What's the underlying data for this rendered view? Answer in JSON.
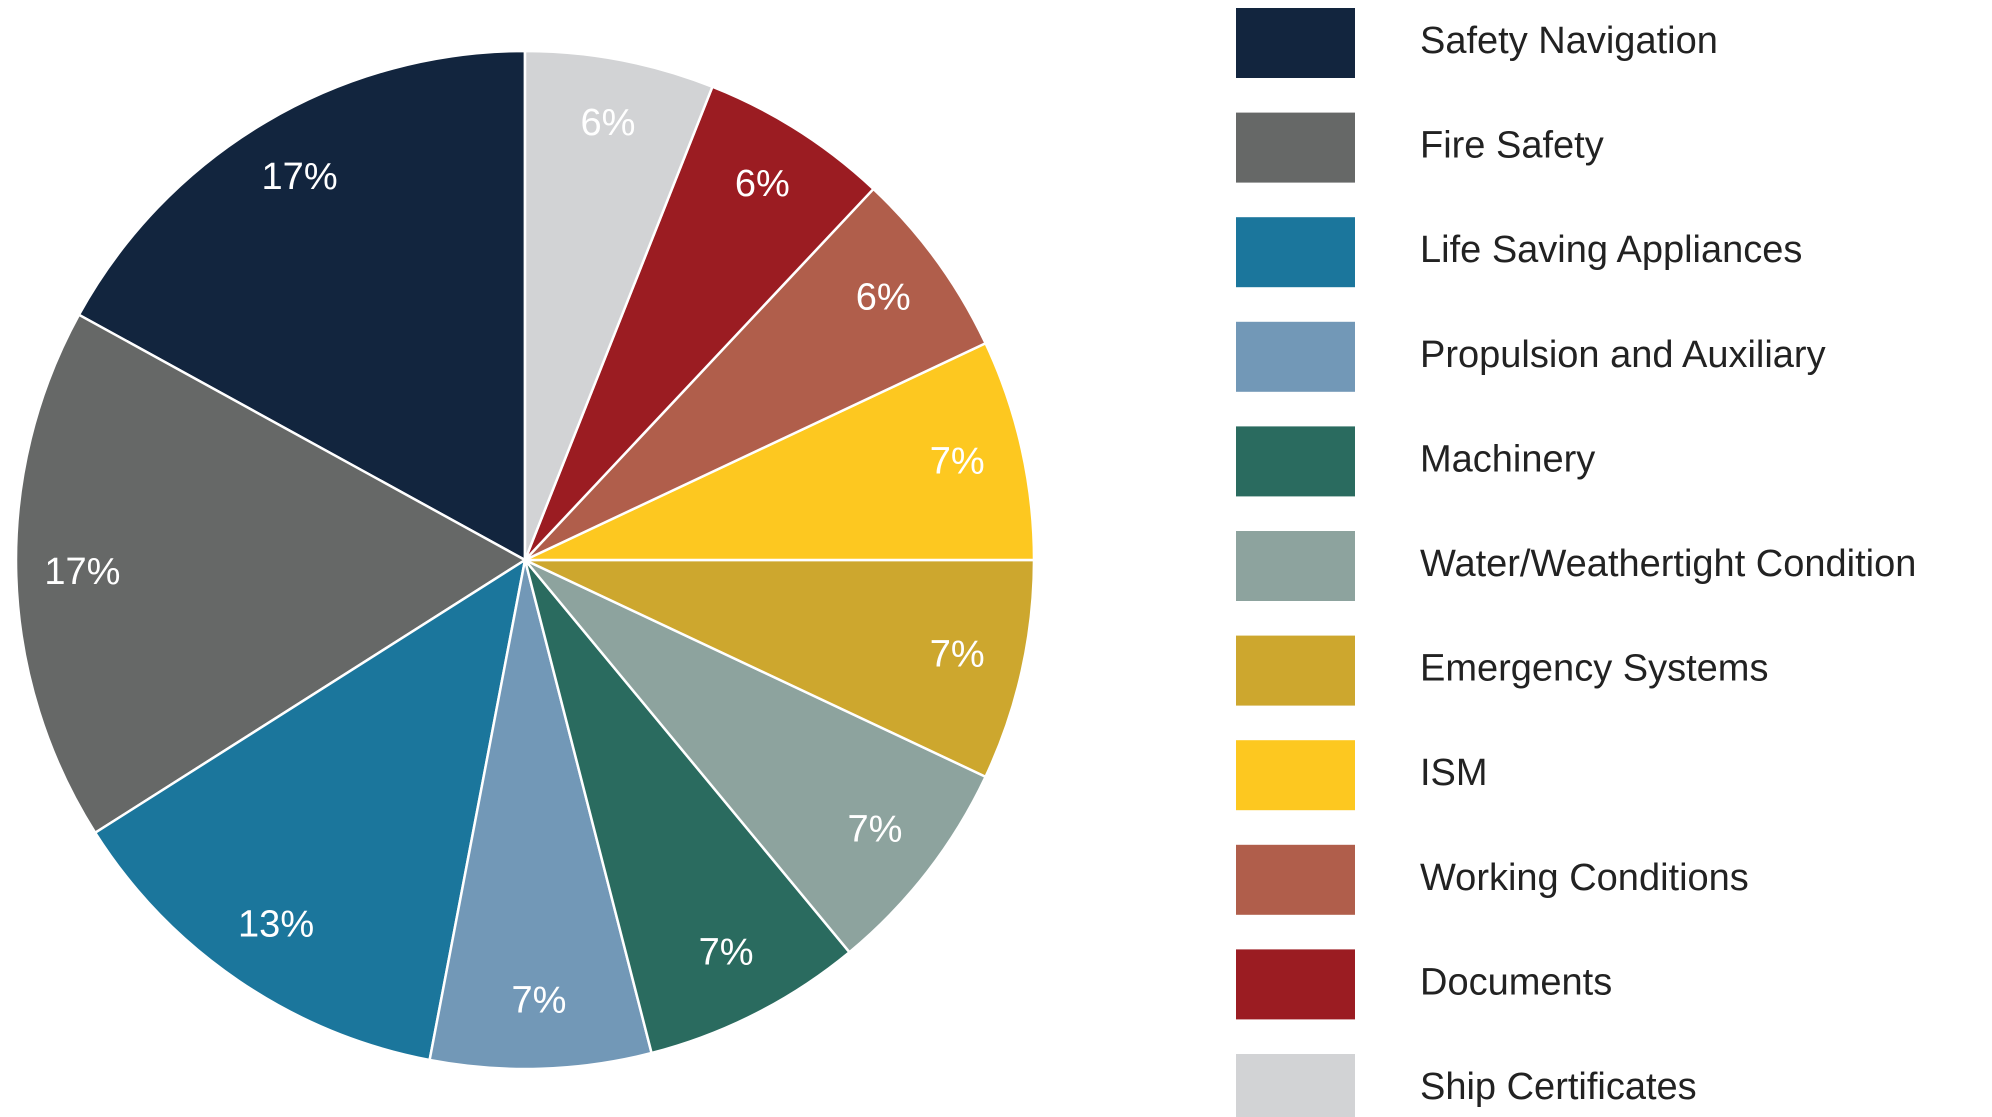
{
  "chart_data": {
    "type": "pie",
    "categories": [
      "Safety Navigation",
      "Fire Safety",
      "Life Saving Appliances",
      "Propulsion and Auxiliary",
      "Machinery",
      "Water/Weathertight Condition",
      "Emergency Systems",
      "ISM",
      "Working Conditions",
      "Documents",
      "Ship Certificates"
    ],
    "values": [
      17,
      17,
      13,
      7,
      7,
      7,
      7,
      7,
      6,
      6,
      6
    ],
    "value_labels": [
      "17%",
      "17%",
      "13%",
      "7%",
      "7%",
      "7%",
      "7%",
      "7%",
      "6%",
      "6%",
      "6%"
    ],
    "colors": [
      "#12253e",
      "#666867",
      "#1b769c",
      "#7298b7",
      "#2a6b5f",
      "#8da39e",
      "#cda72e",
      "#fdc820",
      "#b05e4b",
      "#9b1c22",
      "#d2d3d5"
    ],
    "direction": "counterclockwise",
    "start": "top",
    "legend": "right"
  }
}
